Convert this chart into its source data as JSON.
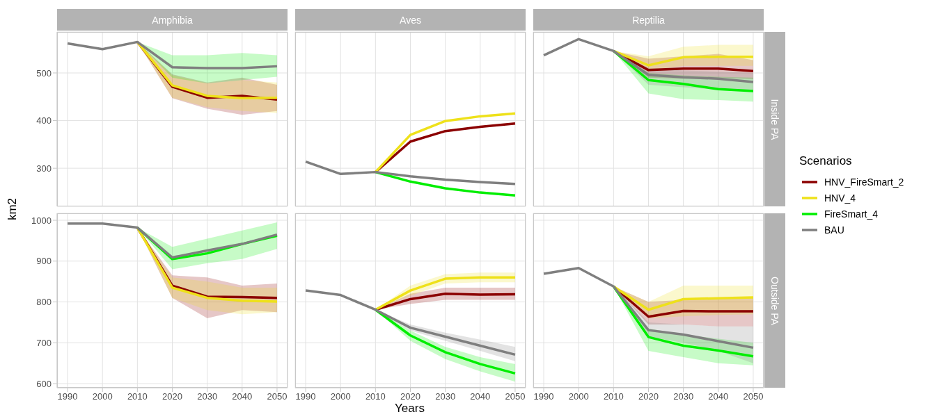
{
  "chart_data": [
    {
      "type": "line",
      "title": "Amphibia",
      "tick_labels": "y",
      "x": [
        1990,
        2000,
        2010,
        2020,
        2030,
        2040,
        2050
      ],
      "xlim": [
        1987,
        2053
      ],
      "xticks": [
        1990,
        2000,
        2010,
        2020,
        2030,
        2040,
        2050
      ],
      "ylim": [
        220,
        586
      ],
      "yticks": [
        300,
        400,
        500
      ],
      "grid": true,
      "series": [
        {
          "color": "#8b0000",
          "values": [
            null,
            null,
            565,
            471,
            448,
            452,
            444
          ],
          "lower": [
            null,
            null,
            565,
            447,
            425,
            412,
            420
          ],
          "upper": [
            null,
            null,
            565,
            497,
            480,
            490,
            475
          ]
        },
        {
          "color": "#eee11a",
          "values": [
            null,
            null,
            565,
            474,
            452,
            447,
            448
          ],
          "lower": [
            null,
            null,
            565,
            448,
            428,
            420,
            416
          ],
          "upper": [
            null,
            null,
            565,
            495,
            478,
            485,
            480
          ]
        },
        {
          "color": "#00ee00",
          "values": [
            null,
            null,
            null,
            null,
            null,
            null,
            null
          ],
          "lower": [
            null,
            null,
            565,
            490,
            478,
            485,
            492
          ],
          "upper": [
            null,
            null,
            565,
            537,
            537,
            542,
            537
          ]
        },
        {
          "color": "#7f7f7f",
          "values": [
            562,
            550,
            565,
            512,
            510,
            510,
            514
          ]
        }
      ]
    },
    {
      "type": "line",
      "title": "Aves",
      "tick_labels": false,
      "x": [
        1990,
        2000,
        2010,
        2020,
        2030,
        2040,
        2050
      ],
      "xlim": [
        1987,
        2053
      ],
      "xticks": [
        1990,
        2000,
        2010,
        2020,
        2030,
        2040,
        2050
      ],
      "ylim": [
        220,
        586
      ],
      "yticks": [
        300,
        400,
        500
      ],
      "grid": true,
      "series": [
        {
          "color": "#8b0000",
          "values": [
            null,
            null,
            292,
            356,
            378,
            387,
            394
          ]
        },
        {
          "color": "#eee11a",
          "values": [
            null,
            null,
            292,
            370,
            399,
            409,
            415
          ]
        },
        {
          "color": "#00ee00",
          "values": [
            null,
            null,
            292,
            272,
            258,
            249,
            243
          ]
        },
        {
          "color": "#7f7f7f",
          "values": [
            314,
            288,
            292,
            283,
            276,
            271,
            267
          ]
        }
      ]
    },
    {
      "type": "line",
      "title": "Reptilia",
      "annotations": [
        "Inside PA"
      ],
      "tick_labels": false,
      "x": [
        1990,
        2000,
        2010,
        2020,
        2030,
        2040,
        2050
      ],
      "xlim": [
        1987,
        2053
      ],
      "xticks": [
        1990,
        2000,
        2010,
        2020,
        2030,
        2040,
        2050
      ],
      "ylim": [
        220,
        586
      ],
      "yticks": [
        300,
        400,
        500
      ],
      "grid": true,
      "series": [
        {
          "color": "#8b0000",
          "values": [
            null,
            null,
            546,
            506,
            509,
            509,
            504
          ],
          "lower": [
            null,
            null,
            546,
            490,
            488,
            490,
            487
          ],
          "upper": [
            null,
            null,
            546,
            530,
            535,
            540,
            527
          ]
        },
        {
          "color": "#eee11a",
          "values": [
            null,
            null,
            546,
            516,
            533,
            534,
            534
          ],
          "lower": [
            null,
            null,
            546,
            505,
            515,
            515,
            515
          ],
          "upper": [
            null,
            null,
            546,
            535,
            555,
            559,
            559
          ]
        },
        {
          "color": "#00ee00",
          "values": [
            null,
            null,
            546,
            485,
            477,
            466,
            462
          ],
          "lower": [
            null,
            null,
            546,
            457,
            445,
            443,
            440
          ],
          "upper": [
            null,
            null,
            546,
            500,
            495,
            492,
            490
          ]
        },
        {
          "color": "#7f7f7f",
          "values": [
            537,
            571,
            546,
            496,
            491,
            488,
            481
          ],
          "lower": [
            null,
            null,
            546,
            475,
            470,
            465,
            460
          ],
          "upper": [
            null,
            null,
            546,
            510,
            505,
            503,
            500
          ]
        }
      ]
    },
    {
      "type": "line",
      "ylabel": "km2",
      "x": [
        1990,
        2000,
        2010,
        2020,
        2030,
        2040,
        2050
      ],
      "xlim": [
        1987,
        2053
      ],
      "xticks": [
        1990,
        2000,
        2010,
        2020,
        2030,
        2040,
        2050
      ],
      "ylim": [
        590,
        1017
      ],
      "yticks": [
        600,
        700,
        800,
        900,
        1000
      ],
      "grid": true,
      "series": [
        {
          "color": "#8b0000",
          "values": [
            null,
            null,
            982,
            840,
            813,
            812,
            810
          ],
          "lower": [
            null,
            null,
            982,
            810,
            760,
            780,
            775
          ],
          "upper": [
            null,
            null,
            982,
            865,
            860,
            840,
            845
          ]
        },
        {
          "color": "#eee11a",
          "values": [
            null,
            null,
            982,
            835,
            810,
            803,
            801
          ],
          "lower": [
            null,
            null,
            982,
            810,
            780,
            770,
            775
          ],
          "upper": [
            null,
            null,
            982,
            860,
            850,
            835,
            835
          ]
        },
        {
          "color": "#00ee00",
          "values": [
            null,
            null,
            982,
            905,
            919,
            942,
            962
          ],
          "lower": [
            null,
            null,
            982,
            880,
            895,
            905,
            930
          ],
          "upper": [
            null,
            null,
            982,
            935,
            955,
            975,
            995
          ]
        },
        {
          "color": "#7f7f7f",
          "values": [
            992,
            992,
            982,
            909,
            926,
            942,
            965
          ]
        }
      ]
    },
    {
      "type": "line",
      "xlabel": "Years",
      "tick_labels": "x",
      "x": [
        1990,
        2000,
        2010,
        2020,
        2030,
        2040,
        2050
      ],
      "xlim": [
        1987,
        2053
      ],
      "xticks": [
        1990,
        2000,
        2010,
        2020,
        2030,
        2040,
        2050
      ],
      "ylim": [
        590,
        1017
      ],
      "yticks": [
        600,
        700,
        800,
        900,
        1000
      ],
      "grid": true,
      "series": [
        {
          "color": "#8b0000",
          "values": [
            null,
            null,
            781,
            807,
            820,
            818,
            819
          ],
          "lower": [
            null,
            null,
            781,
            795,
            805,
            805,
            805
          ],
          "upper": [
            null,
            null,
            781,
            820,
            835,
            835,
            835
          ]
        },
        {
          "color": "#eee11a",
          "values": [
            null,
            null,
            781,
            828,
            857,
            860,
            860
          ],
          "lower": [
            null,
            null,
            781,
            815,
            845,
            848,
            848
          ],
          "upper": [
            null,
            null,
            781,
            840,
            868,
            872,
            872
          ]
        },
        {
          "color": "#00ee00",
          "values": [
            null,
            null,
            781,
            718,
            677,
            648,
            625
          ],
          "lower": [
            null,
            null,
            781,
            705,
            660,
            630,
            605
          ],
          "upper": [
            null,
            null,
            781,
            730,
            690,
            665,
            648
          ]
        },
        {
          "color": "#7f7f7f",
          "values": [
            828,
            817,
            781,
            737,
            715,
            693,
            671
          ],
          "lower": [
            null,
            null,
            781,
            730,
            705,
            680,
            655
          ],
          "upper": [
            null,
            null,
            781,
            745,
            725,
            708,
            690
          ]
        }
      ]
    },
    {
      "type": "line",
      "annotations": [
        "Outside PA"
      ],
      "tick_labels": "x",
      "legend": "right",
      "legend_title": "Scenarios",
      "x": [
        1990,
        2000,
        2010,
        2020,
        2030,
        2040,
        2050
      ],
      "xlim": [
        1987,
        2053
      ],
      "xticks": [
        1990,
        2000,
        2010,
        2020,
        2030,
        2040,
        2050
      ],
      "ylim": [
        590,
        1017
      ],
      "yticks": [
        600,
        700,
        800,
        900,
        1000
      ],
      "grid": true,
      "series": [
        {
          "name": "HNV_FireSmart_2",
          "color": "#8b0000",
          "values": [
            null,
            null,
            838,
            764,
            778,
            777,
            777
          ],
          "lower": [
            null,
            null,
            838,
            745,
            745,
            740,
            740
          ],
          "upper": [
            null,
            null,
            838,
            800,
            805,
            810,
            810
          ]
        },
        {
          "name": "HNV_4",
          "color": "#eee11a",
          "values": [
            null,
            null,
            838,
            781,
            807,
            809,
            811
          ],
          "lower": [
            null,
            null,
            838,
            760,
            765,
            768,
            770
          ],
          "upper": [
            null,
            null,
            838,
            800,
            840,
            840,
            840
          ]
        },
        {
          "name": "FireSmart_4",
          "color": "#00ee00",
          "values": [
            null,
            null,
            838,
            714,
            693,
            681,
            667
          ],
          "lower": [
            null,
            null,
            838,
            680,
            665,
            650,
            645
          ],
          "upper": [
            null,
            null,
            838,
            735,
            720,
            710,
            700
          ]
        },
        {
          "name": "BAU",
          "color": "#7f7f7f",
          "values": [
            869,
            883,
            838,
            731,
            720,
            704,
            688
          ],
          "lower": [
            null,
            null,
            838,
            715,
            700,
            680,
            650
          ],
          "upper": [
            null,
            null,
            838,
            750,
            745,
            740,
            740
          ]
        }
      ]
    }
  ]
}
